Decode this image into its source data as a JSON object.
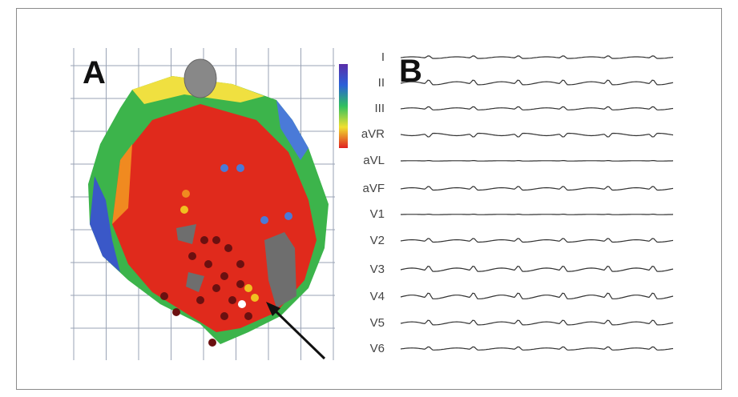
{
  "panels": {
    "a": {
      "label": "A"
    },
    "b": {
      "label": "B",
      "leads": [
        "I",
        "II",
        "III",
        "aVR",
        "aVL",
        "aVF",
        "V1",
        "V2",
        "V3",
        "V4",
        "V5",
        "V6"
      ]
    }
  }
}
